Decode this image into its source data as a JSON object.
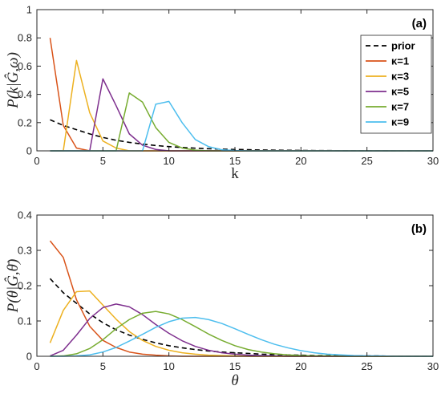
{
  "chart_data": [
    {
      "type": "line",
      "panel_tag": "(a)",
      "xlabel": "k",
      "ylabel_parts": {
        "base": "P(",
        "var": "k",
        "bar": "|",
        "ghat": "Ĝ",
        "sep": ",",
        "tail": "ω",
        "close": ")"
      },
      "xlim": [
        0,
        30
      ],
      "ylim": [
        0,
        1
      ],
      "xticks": [
        "0",
        "5",
        "10",
        "15",
        "20",
        "25",
        "30"
      ],
      "yticks": [
        "0",
        "0.2",
        "0.4",
        "0.6",
        "0.8",
        "1"
      ],
      "legend_position": "right",
      "series": [
        {
          "name": "prior",
          "color": "#000000",
          "dashed": true,
          "x": [
            1,
            2,
            3,
            4,
            5,
            6,
            7,
            8,
            9,
            10,
            11,
            12,
            13,
            14,
            15,
            16,
            17,
            18,
            19,
            20,
            21,
            22,
            23,
            24,
            25,
            26,
            27,
            28,
            29,
            30
          ],
          "y": [
            0.22,
            0.18,
            0.15,
            0.12,
            0.095,
            0.075,
            0.06,
            0.048,
            0.038,
            0.03,
            0.024,
            0.019,
            0.015,
            0.012,
            0.01,
            0.008,
            0.006,
            0.005,
            0.004,
            0.003,
            0.002,
            0.002,
            0.001,
            0.001,
            0.001,
            0.001,
            0,
            0,
            0,
            0
          ]
        },
        {
          "name": "κ=1",
          "color": "#d95319",
          "dashed": false,
          "x": [
            1,
            2,
            3,
            4,
            5,
            6,
            7,
            8,
            9,
            10,
            11,
            12,
            13,
            14,
            15,
            16,
            17,
            18,
            19,
            20,
            21,
            22,
            23,
            24,
            25,
            26,
            27,
            28,
            29,
            30
          ],
          "y": [
            0.8,
            0.18,
            0.02,
            0,
            0,
            0,
            0,
            0,
            0,
            0,
            0,
            0,
            0,
            0,
            0,
            0,
            0,
            0,
            0,
            0,
            0,
            0,
            0,
            0,
            0,
            0,
            0,
            0,
            0,
            0
          ]
        },
        {
          "name": "κ=3",
          "color": "#edb120",
          "dashed": false,
          "x": [
            1,
            2,
            3,
            4,
            5,
            6,
            7,
            8,
            9,
            10,
            11,
            12,
            13,
            14,
            15,
            16,
            17,
            18,
            19,
            20,
            21,
            22,
            23,
            24,
            25,
            26,
            27,
            28,
            29,
            30
          ],
          "y": [
            0,
            0,
            0.64,
            0.27,
            0.07,
            0.02,
            0,
            0,
            0,
            0,
            0,
            0,
            0,
            0,
            0,
            0,
            0,
            0,
            0,
            0,
            0,
            0,
            0,
            0,
            0,
            0,
            0,
            0,
            0,
            0
          ]
        },
        {
          "name": "κ=5",
          "color": "#7e2f8e",
          "dashed": false,
          "x": [
            1,
            2,
            3,
            4,
            5,
            6,
            7,
            8,
            9,
            10,
            11,
            12,
            13,
            14,
            15,
            16,
            17,
            18,
            19,
            20,
            21,
            22,
            23,
            24,
            25,
            26,
            27,
            28,
            29,
            30
          ],
          "y": [
            0,
            0,
            0,
            0,
            0.51,
            0.32,
            0.12,
            0.04,
            0.01,
            0,
            0,
            0,
            0,
            0,
            0,
            0,
            0,
            0,
            0,
            0,
            0,
            0,
            0,
            0,
            0,
            0,
            0,
            0,
            0,
            0
          ]
        },
        {
          "name": "κ=7",
          "color": "#77ac30",
          "dashed": false,
          "x": [
            1,
            2,
            3,
            4,
            5,
            6,
            7,
            8,
            9,
            10,
            11,
            12,
            13,
            14,
            15,
            16,
            17,
            18,
            19,
            20,
            21,
            22,
            23,
            24,
            25,
            26,
            27,
            28,
            29,
            30
          ],
          "y": [
            0,
            0,
            0,
            0,
            0,
            0,
            0.41,
            0.345,
            0.165,
            0.06,
            0.02,
            0.005,
            0,
            0,
            0,
            0,
            0,
            0,
            0,
            0,
            0,
            0,
            0,
            0,
            0,
            0,
            0,
            0,
            0,
            0
          ]
        },
        {
          "name": "κ=9",
          "color": "#4dbeee",
          "dashed": false,
          "x": [
            1,
            2,
            3,
            4,
            5,
            6,
            7,
            8,
            9,
            10,
            11,
            12,
            13,
            14,
            15,
            16,
            17,
            18,
            19,
            20,
            21,
            22,
            23,
            24,
            25,
            26,
            27,
            28,
            29,
            30
          ],
          "y": [
            0,
            0,
            0,
            0,
            0,
            0,
            0,
            0,
            0.33,
            0.35,
            0.2,
            0.08,
            0.03,
            0.008,
            0.002,
            0,
            0,
            0,
            0,
            0,
            0,
            0,
            0,
            0,
            0,
            0,
            0,
            0,
            0,
            0
          ]
        }
      ]
    },
    {
      "type": "line",
      "panel_tag": "(b)",
      "xlabel": "θ",
      "ylabel_parts": {
        "base": "P(",
        "var": "θ",
        "bar": "|",
        "ghat": "Ĝ",
        "sep": ",",
        "tail": "θ̄",
        "close": ")"
      },
      "xlim": [
        0,
        30
      ],
      "ylim": [
        0,
        0.4
      ],
      "xticks": [
        "0",
        "5",
        "10",
        "15",
        "20",
        "25",
        "30"
      ],
      "yticks": [
        "0",
        "0.1",
        "0.2",
        "0.3",
        "0.4"
      ],
      "series": [
        {
          "name": "prior",
          "color": "#000000",
          "dashed": true,
          "x": [
            1,
            2,
            3,
            4,
            5,
            6,
            7,
            8,
            9,
            10,
            11,
            12,
            13,
            14,
            15,
            16,
            17,
            18,
            19,
            20,
            21,
            22,
            23,
            24,
            25,
            26,
            27,
            28,
            29,
            30
          ],
          "y": [
            0.22,
            0.18,
            0.15,
            0.12,
            0.095,
            0.075,
            0.06,
            0.048,
            0.038,
            0.03,
            0.024,
            0.019,
            0.015,
            0.012,
            0.01,
            0.008,
            0.006,
            0.005,
            0.004,
            0.003,
            0.002,
            0.002,
            0.001,
            0.001,
            0.001,
            0.001,
            0,
            0,
            0,
            0
          ]
        },
        {
          "name": "κ=1",
          "color": "#d95319",
          "dashed": false,
          "x": [
            1,
            2,
            3,
            4,
            5,
            6,
            7,
            8,
            9,
            10,
            11,
            12,
            13,
            14,
            15,
            16,
            17,
            18,
            19,
            20,
            21,
            22,
            23,
            24,
            25,
            26,
            27,
            28,
            29,
            30
          ],
          "y": [
            0.327,
            0.28,
            0.16,
            0.085,
            0.045,
            0.025,
            0.012,
            0.006,
            0.003,
            0.001,
            0,
            0,
            0,
            0,
            0,
            0,
            0,
            0,
            0,
            0,
            0,
            0,
            0,
            0,
            0,
            0,
            0,
            0,
            0,
            0
          ]
        },
        {
          "name": "κ=3",
          "color": "#edb120",
          "dashed": false,
          "x": [
            1,
            2,
            3,
            4,
            5,
            6,
            7,
            8,
            9,
            10,
            11,
            12,
            13,
            14,
            15,
            16,
            17,
            18,
            19,
            20,
            21,
            22,
            23,
            24,
            25,
            26,
            27,
            28,
            29,
            30
          ],
          "y": [
            0.038,
            0.13,
            0.183,
            0.185,
            0.145,
            0.105,
            0.07,
            0.045,
            0.028,
            0.017,
            0.01,
            0.006,
            0.003,
            0.002,
            0.001,
            0,
            0,
            0,
            0,
            0,
            0,
            0,
            0,
            0,
            0,
            0,
            0,
            0,
            0,
            0
          ]
        },
        {
          "name": "κ=5",
          "color": "#7e2f8e",
          "dashed": false,
          "x": [
            1,
            2,
            3,
            4,
            5,
            6,
            7,
            8,
            9,
            10,
            11,
            12,
            13,
            14,
            15,
            16,
            17,
            18,
            19,
            20,
            21,
            22,
            23,
            24,
            25,
            26,
            27,
            28,
            29,
            30
          ],
          "y": [
            0.001,
            0.017,
            0.06,
            0.107,
            0.138,
            0.148,
            0.14,
            0.118,
            0.09,
            0.065,
            0.044,
            0.028,
            0.017,
            0.01,
            0.006,
            0.003,
            0.002,
            0.001,
            0,
            0,
            0,
            0,
            0,
            0,
            0,
            0,
            0,
            0,
            0,
            0
          ]
        },
        {
          "name": "κ=7",
          "color": "#77ac30",
          "dashed": false,
          "x": [
            1,
            2,
            3,
            4,
            5,
            6,
            7,
            8,
            9,
            10,
            11,
            12,
            13,
            14,
            15,
            16,
            17,
            18,
            19,
            20,
            21,
            22,
            23,
            24,
            25,
            26,
            27,
            28,
            29,
            30
          ],
          "y": [
            0,
            0.001,
            0.007,
            0.022,
            0.047,
            0.078,
            0.104,
            0.122,
            0.127,
            0.12,
            0.104,
            0.084,
            0.063,
            0.045,
            0.03,
            0.019,
            0.012,
            0.007,
            0.004,
            0.002,
            0.001,
            0.001,
            0,
            0,
            0,
            0,
            0,
            0,
            0,
            0
          ]
        },
        {
          "name": "κ=9",
          "color": "#4dbeee",
          "dashed": false,
          "x": [
            1,
            2,
            3,
            4,
            5,
            6,
            7,
            8,
            9,
            10,
            11,
            12,
            13,
            14,
            15,
            16,
            17,
            18,
            19,
            20,
            21,
            22,
            23,
            24,
            25,
            26,
            27,
            28,
            29,
            30
          ],
          "y": [
            0,
            0,
            0.001,
            0.004,
            0.012,
            0.025,
            0.043,
            0.062,
            0.082,
            0.098,
            0.108,
            0.11,
            0.104,
            0.093,
            0.078,
            0.062,
            0.047,
            0.034,
            0.024,
            0.016,
            0.01,
            0.006,
            0.004,
            0.002,
            0.001,
            0.001,
            0,
            0,
            0,
            0
          ]
        }
      ]
    }
  ]
}
